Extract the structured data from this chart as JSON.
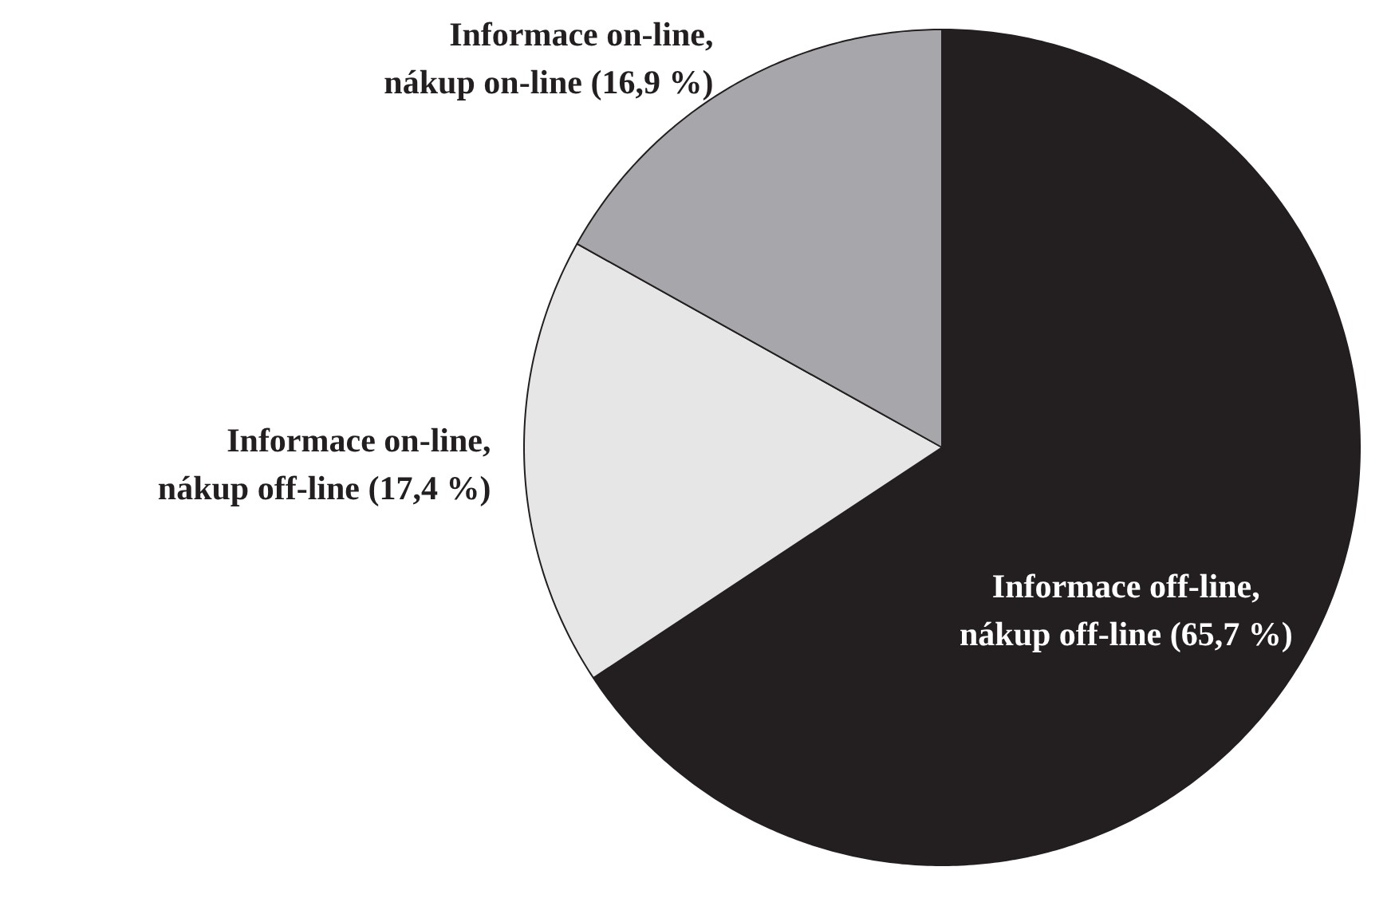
{
  "chart_data": {
    "type": "pie",
    "categories": [
      "Informace off-line,\nnákup off-line",
      "Informace on-line,\nnákup off-line",
      "Informace on-line,\nnákup on-line"
    ],
    "values": [
      65.7,
      17.4,
      16.9
    ],
    "value_labels": [
      "(65,7 %)",
      "(17,4 %)",
      "(16,9 %)"
    ],
    "colors": [
      "#231f20",
      "#e6e6e6",
      "#a7a6aa"
    ]
  }
}
